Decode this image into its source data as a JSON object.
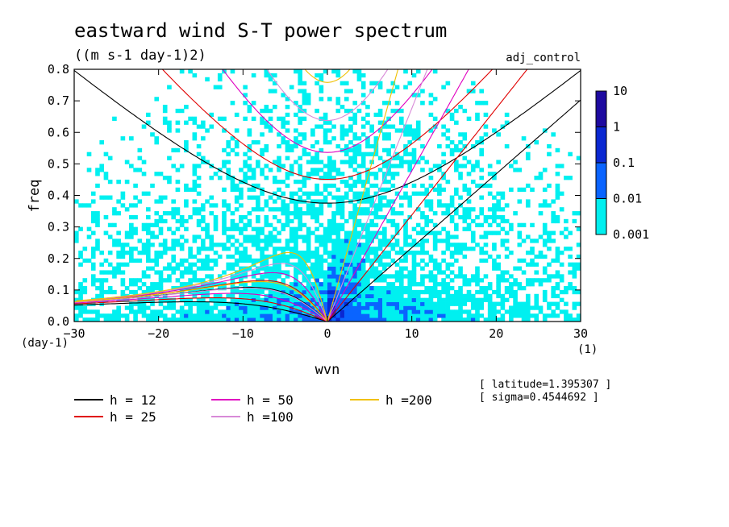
{
  "chart_data": {
    "type": "heatmap",
    "title": "eastward wind S-T power spectrum",
    "subtitle": "((m s-1 day-1)2)",
    "run_label": "adj_control",
    "xlabel": "wvn",
    "ylabel": "freq",
    "x_unit": "(1)",
    "y_unit": "(day-1)",
    "xlim": [
      -30,
      30
    ],
    "ylim": [
      0,
      0.8
    ],
    "x_ticks": [
      -30,
      -20,
      -10,
      0,
      10,
      20,
      30
    ],
    "x_tick_labels": [
      "−30",
      "−20",
      "−10",
      "0",
      "10",
      "20",
      "30"
    ],
    "y_ticks": [
      0,
      0.1,
      0.2,
      0.3,
      0.4,
      0.5,
      0.6,
      0.7,
      0.8
    ],
    "y_tick_labels": [
      "0.0",
      "0.1",
      "0.2",
      "0.3",
      "0.4",
      "0.5",
      "0.6",
      "0.7",
      "0.8"
    ],
    "colorbar": {
      "levels": [
        "0.001",
        "0.01",
        "0.1",
        "1",
        "10"
      ],
      "colors": [
        "#00f0f0",
        "#0a64ff",
        "#0a28d2",
        "#1e0aa0"
      ]
    },
    "dispersion_curves": [
      {
        "name": "h = 12",
        "h": 12,
        "color": "#000000"
      },
      {
        "name": "h = 25",
        "h": 25,
        "color": "#e00000"
      },
      {
        "name": "h = 50",
        "h": 50,
        "color": "#e000c0"
      },
      {
        "name": "h =100",
        "h": 100,
        "color": "#d88ad8"
      },
      {
        "name": "h =200",
        "h": 200,
        "color": "#f0c000"
      }
    ],
    "info": [
      "[ latitude=1.395307 ]",
      "[ sigma=0.4544692 ]"
    ]
  }
}
